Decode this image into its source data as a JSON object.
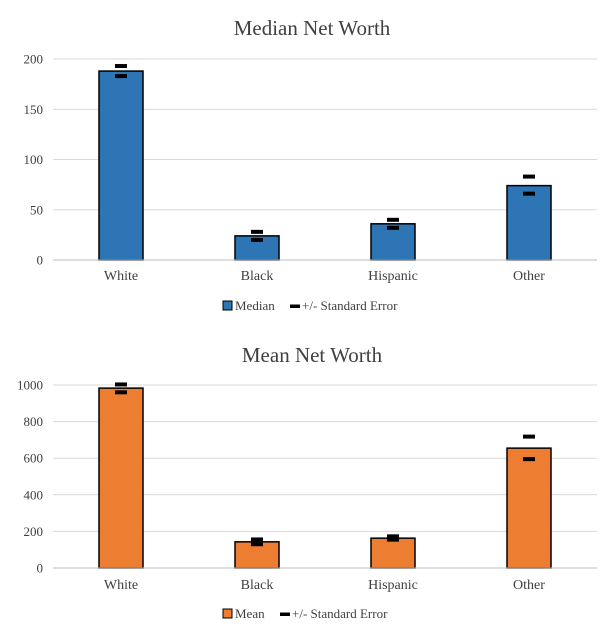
{
  "chart_data": [
    {
      "type": "bar",
      "title": "Median Net Worth",
      "categories": [
        "White",
        "Black",
        "Hispanic",
        "Other"
      ],
      "series": [
        {
          "name": "Median",
          "values": [
            188,
            24,
            36,
            74
          ],
          "color": "#2e75b6"
        }
      ],
      "error_series_name": "+/- Standard Error",
      "error_low": [
        183,
        20,
        32,
        66
      ],
      "error_high": [
        193,
        28,
        40,
        83
      ],
      "yticks": [
        0,
        50,
        100,
        150,
        200
      ],
      "ylim": [
        0,
        200
      ],
      "xlabel": "",
      "ylabel": "",
      "grid": true,
      "legend_position": "bottom"
    },
    {
      "type": "bar",
      "title": "Mean Net Worth",
      "categories": [
        "White",
        "Black",
        "Hispanic",
        "Other"
      ],
      "series": [
        {
          "name": "Mean",
          "values": [
            983,
            143,
            163,
            655
          ],
          "color": "#ed7d31"
        }
      ],
      "error_series_name": "+/- Standard Error",
      "error_low": [
        960,
        130,
        155,
        595
      ],
      "error_high": [
        1003,
        156,
        173,
        718
      ],
      "yticks": [
        0,
        200,
        400,
        600,
        800,
        1000
      ],
      "ylim": [
        0,
        1000
      ],
      "xlabel": "",
      "ylabel": "",
      "grid": true,
      "legend_position": "bottom"
    }
  ]
}
